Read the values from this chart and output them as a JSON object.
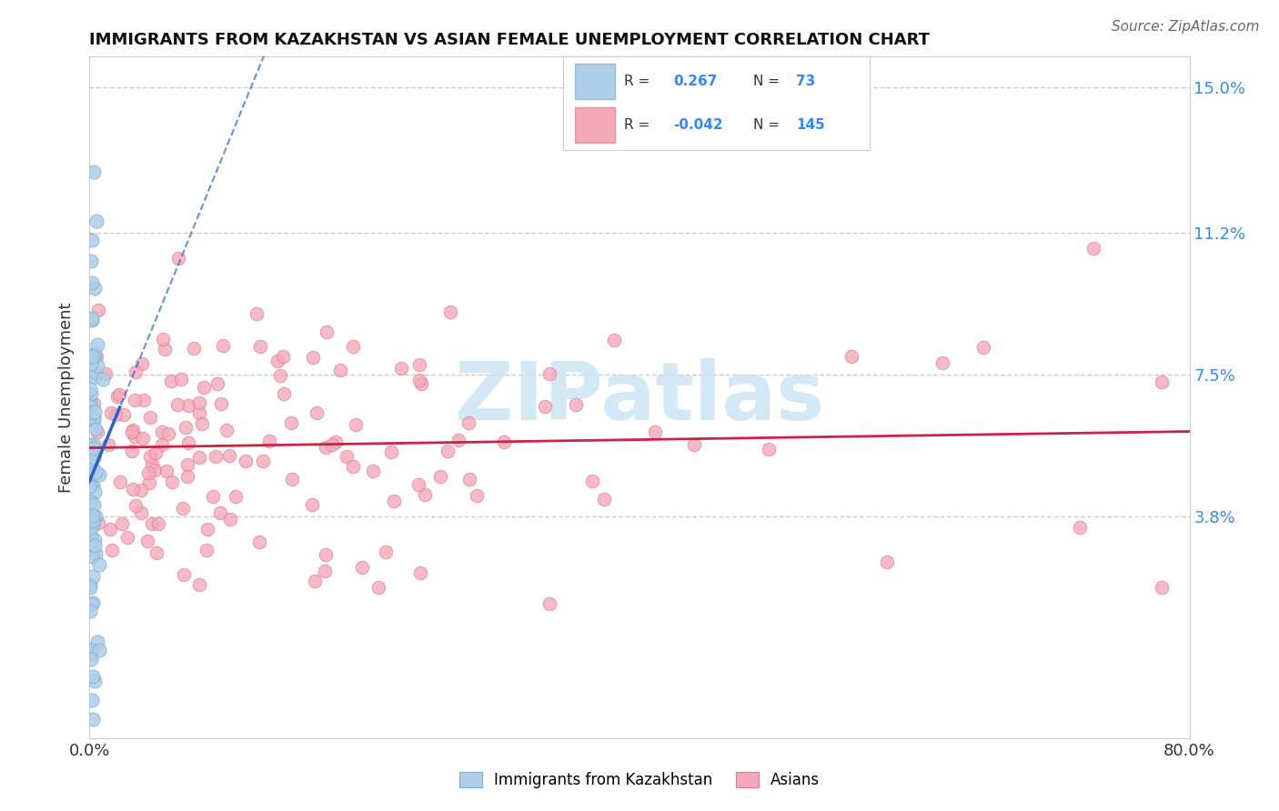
{
  "title": "IMMIGRANTS FROM KAZAKHSTAN VS ASIAN FEMALE UNEMPLOYMENT CORRELATION CHART",
  "source_text": "Source: ZipAtlas.com",
  "ylabel": "Female Unemployment",
  "x_min": 0.0,
  "x_max": 0.8,
  "y_min": -0.02,
  "y_max": 0.158,
  "y_ticks": [
    0.038,
    0.075,
    0.112,
    0.15
  ],
  "y_tick_labels": [
    "3.8%",
    "7.5%",
    "11.2%",
    "15.0%"
  ],
  "blue_color": "#aecde8",
  "blue_edge": "#7aaed0",
  "pink_color": "#f4a8b8",
  "pink_edge": "#e07898",
  "blue_trend_color": "#2266cc",
  "pink_trend_color": "#cc2244",
  "blue_R": 0.267,
  "blue_N": 73,
  "pink_R": -0.042,
  "pink_N": 145,
  "legend_box_color": "#aecde8",
  "legend_box2_color": "#f4a8b8",
  "watermark_color": "#cce4f4",
  "background_color": "#ffffff"
}
